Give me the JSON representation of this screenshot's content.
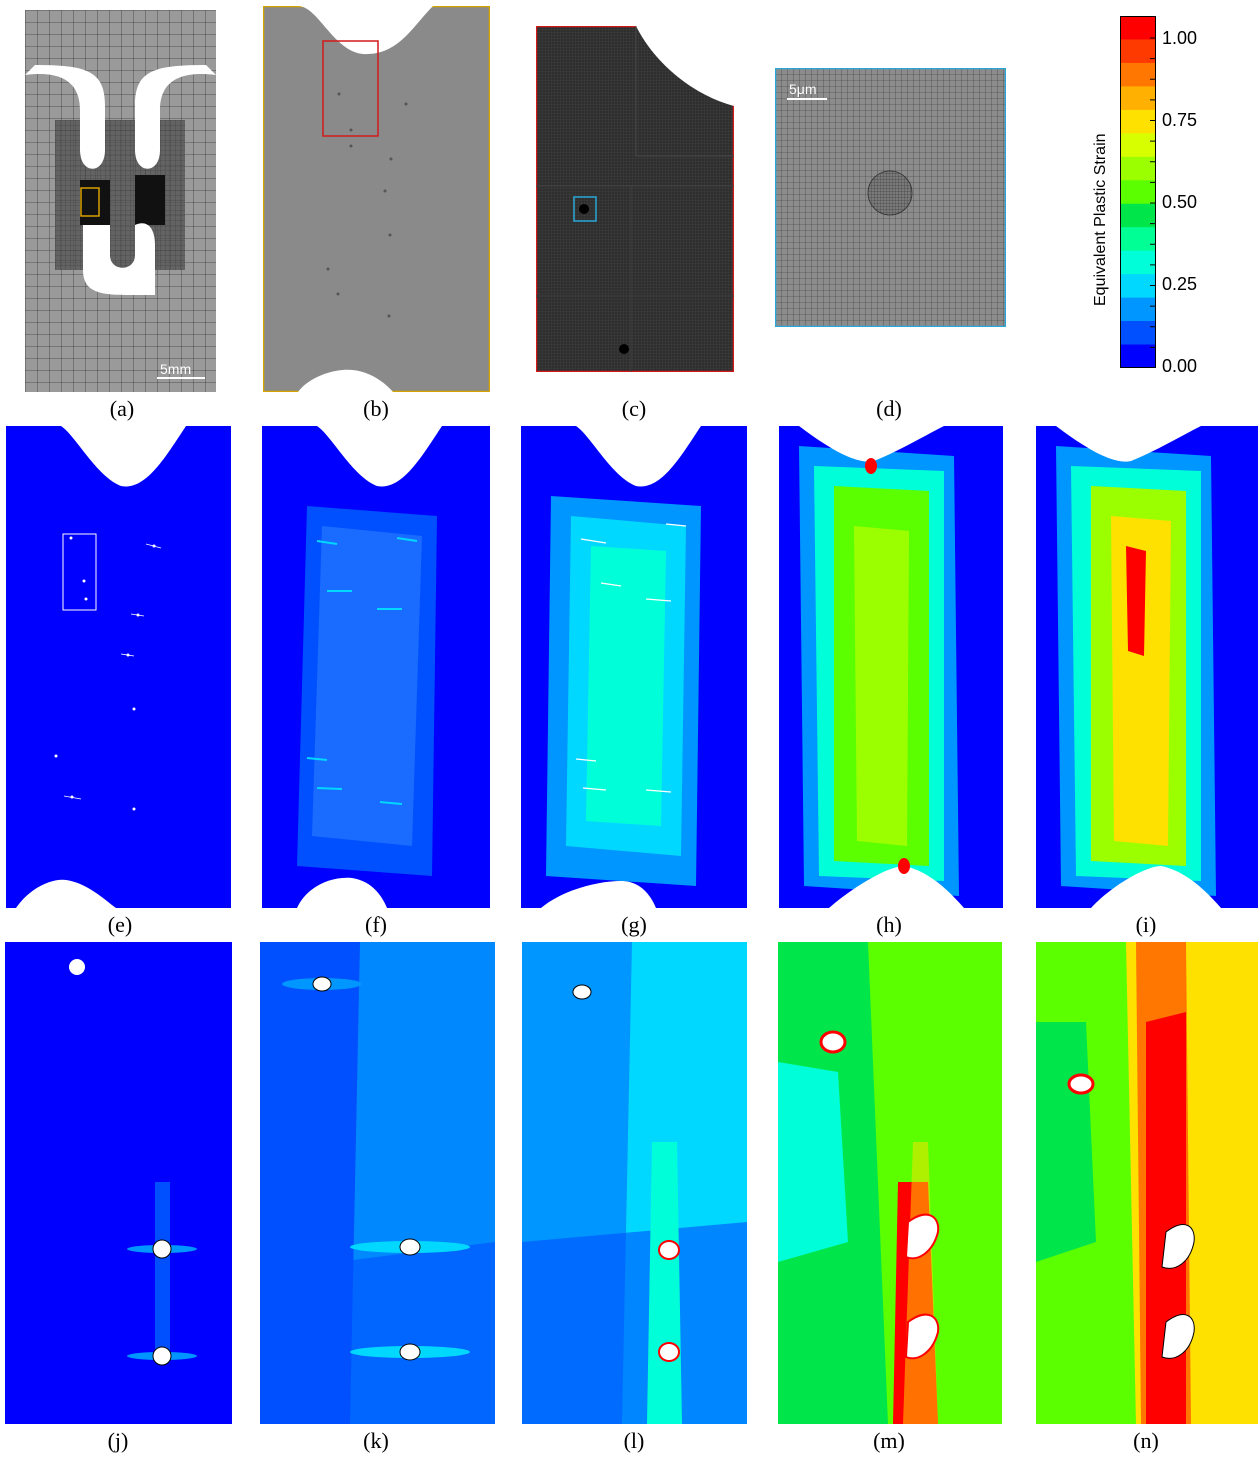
{
  "captions": {
    "a": "(a)",
    "b": "(b)",
    "c": "(c)",
    "d": "(d)",
    "e": "(e)",
    "f": "(f)",
    "g": "(g)",
    "h": "(h)",
    "i": "(i)",
    "j": "(j)",
    "k": "(k)",
    "l": "(l)",
    "m": "(m)",
    "n": "(n)"
  },
  "scalebars": {
    "a": "5mm",
    "d": "5μm"
  },
  "colorbar": {
    "title": "Equivalent Plastic Strain",
    "ticks": [
      "1.00",
      "0.75",
      "0.50",
      "0.25",
      "0.00"
    ],
    "colors": [
      "#ff0000",
      "#ff3a00",
      "#ff7700",
      "#ffb000",
      "#ffe100",
      "#d8ff00",
      "#9cff00",
      "#5cff00",
      "#00e64a",
      "#00ff95",
      "#00ffd8",
      "#00d8ff",
      "#0096ff",
      "#0050ff",
      "#0000ff"
    ]
  },
  "colors": {
    "mesh_bg": "#8a8a8a",
    "contour_blue": "#0000ff",
    "panel_b_border": "#d4a300",
    "panel_c_border": "#d21a1a",
    "panel_d_border": "#2aa7d8"
  }
}
